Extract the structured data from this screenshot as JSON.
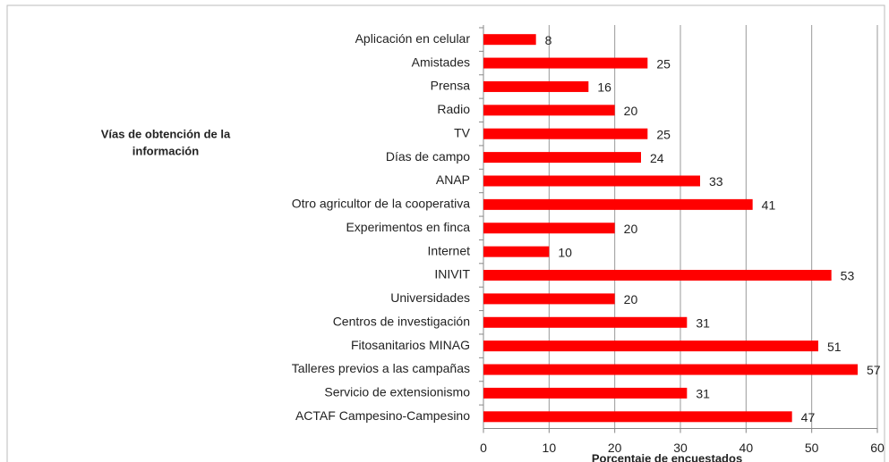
{
  "chart_data": {
    "type": "bar",
    "orientation": "horizontal",
    "y_axis_label": [
      "Vías de obtención de la",
      "información"
    ],
    "x_axis_label": "Porcentaje de encuestados",
    "categories": [
      "Aplicación en celular",
      "Amistades",
      "Prensa",
      "Radio",
      "TV",
      "Días de campo",
      "ANAP",
      "Otro agricultor de la cooperativa",
      "Experimentos en finca",
      "Internet",
      "INIVIT",
      "Universidades",
      "Centros de investigación",
      "Fitosanitarios MINAG",
      "Talleres previos a las campañas",
      "Servicio de extensionismo",
      "ACTAF Campesino-Campesino"
    ],
    "values": [
      8,
      25,
      16,
      20,
      25,
      24,
      33,
      41,
      20,
      10,
      53,
      20,
      31,
      51,
      57,
      31,
      47
    ],
    "color": "#ff0000",
    "xlim": [
      0,
      60
    ],
    "xticks": [
      0,
      10,
      20,
      30,
      40,
      50,
      60
    ],
    "grid": true
  }
}
